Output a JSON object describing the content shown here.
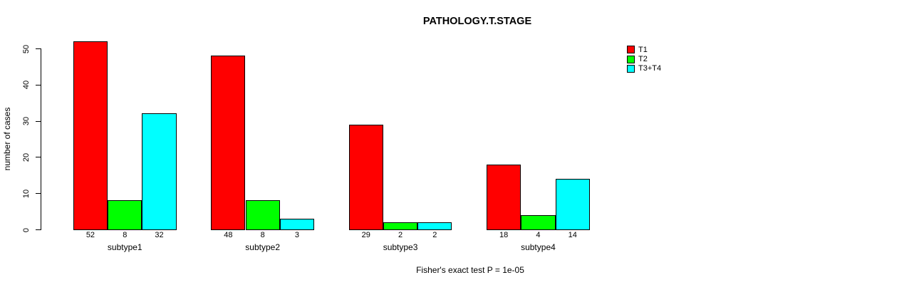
{
  "chart_data": {
    "type": "bar",
    "title": "PATHOLOGY.T.STAGE",
    "ylabel": "number of cases",
    "xlabel": "",
    "categories": [
      "subtype1",
      "subtype2",
      "subtype3",
      "subtype4"
    ],
    "series": [
      {
        "name": "T1",
        "color": "#FF0000",
        "values": [
          52,
          48,
          29,
          18
        ]
      },
      {
        "name": "T2",
        "color": "#00FF00",
        "values": [
          8,
          8,
          2,
          4
        ]
      },
      {
        "name": "T3+T4",
        "color": "#00FFFF",
        "values": [
          32,
          3,
          2,
          14
        ]
      }
    ],
    "bar_value_labels_shown": true,
    "yticks": [
      0,
      10,
      20,
      30,
      40,
      50
    ],
    "ylim": [
      0,
      50
    ],
    "grid": false,
    "legend_position": "top-right",
    "footnote": "Fisher's exact test P = 1e-05",
    "colors": {
      "background": "#FFFFFF",
      "axis": "#000000",
      "bar_border": "#000000",
      "text": "#000000"
    }
  }
}
